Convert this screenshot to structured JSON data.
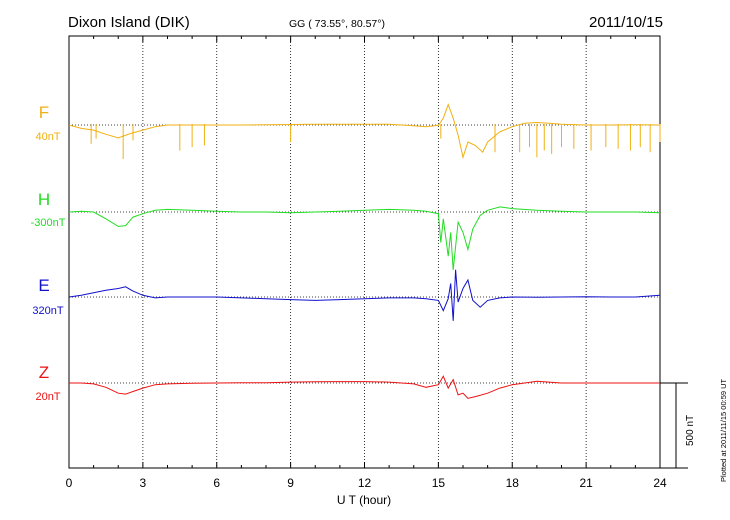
{
  "header": {
    "station": "Dixon Island (DIK)",
    "coords": "GG ( 73.55°,  80.57°)",
    "date": "2011/10/15"
  },
  "footer": {
    "plotted": "Plotted at 2011/11/15 00:59 UT"
  },
  "colors": {
    "F": "#f0b010",
    "H": "#22dd22",
    "E": "#1010cc",
    "Z": "#ee1111",
    "axis": "#000000"
  },
  "chart_data": {
    "type": "line",
    "title": "",
    "xlabel": "U T (hour)",
    "ylabel": "",
    "xlim": [
      0,
      24
    ],
    "xticks": [
      "0",
      "3",
      "6",
      "9",
      "12",
      "15",
      "18",
      "21",
      "24"
    ],
    "grid": "dotted vertical at every 3 h, dotted baseline per component",
    "scale_bar": {
      "value": 500,
      "label": "500 nT"
    },
    "series": [
      {
        "name": "F",
        "baseline_label": "40nT",
        "baseline": 40,
        "points": [
          [
            0,
            40
          ],
          [
            0.5,
            20
          ],
          [
            1,
            10
          ],
          [
            1.5,
            -15
          ],
          [
            2,
            -35
          ],
          [
            2.5,
            -10
          ],
          [
            3,
            10
          ],
          [
            3.5,
            30
          ],
          [
            4,
            40
          ],
          [
            5,
            40
          ],
          [
            6,
            40
          ],
          [
            7,
            40
          ],
          [
            8,
            42
          ],
          [
            9,
            43
          ],
          [
            10,
            44
          ],
          [
            11,
            45
          ],
          [
            12,
            45
          ],
          [
            13,
            45
          ],
          [
            13.5,
            40
          ],
          [
            14,
            35
          ],
          [
            14.5,
            30
          ],
          [
            15,
            38
          ],
          [
            15.2,
            80
          ],
          [
            15.4,
            160
          ],
          [
            15.6,
            80
          ],
          [
            15.8,
            -20
          ],
          [
            16,
            -150
          ],
          [
            16.2,
            -60
          ],
          [
            16.5,
            -80
          ],
          [
            16.8,
            -120
          ],
          [
            17,
            -60
          ],
          [
            17.5,
            0
          ],
          [
            18,
            30
          ],
          [
            18.5,
            50
          ],
          [
            19,
            55
          ],
          [
            19.5,
            50
          ],
          [
            20,
            45
          ],
          [
            21,
            40
          ],
          [
            22,
            40
          ],
          [
            23,
            42
          ],
          [
            24,
            40
          ]
        ],
        "spikes": [
          [
            0.9,
            -70
          ],
          [
            1.1,
            -40
          ],
          [
            2.2,
            -160
          ],
          [
            2.6,
            -50
          ],
          [
            4.5,
            -110
          ],
          [
            5,
            -90
          ],
          [
            5.5,
            -80
          ],
          [
            9,
            -60
          ],
          [
            15.1,
            -40
          ],
          [
            17.3,
            -120
          ],
          [
            18.3,
            -120
          ],
          [
            18.7,
            -90
          ],
          [
            19,
            -150
          ],
          [
            19.3,
            -110
          ],
          [
            19.6,
            -130
          ],
          [
            20,
            -90
          ],
          [
            20.5,
            -100
          ],
          [
            21.2,
            -110
          ],
          [
            21.8,
            -90
          ],
          [
            22.3,
            -100
          ],
          [
            22.8,
            -110
          ],
          [
            23.2,
            -90
          ],
          [
            23.6,
            -120
          ],
          [
            24,
            -60
          ]
        ]
      },
      {
        "name": "H",
        "baseline_label": "-300nT",
        "baseline": -300,
        "points": [
          [
            0,
            -300
          ],
          [
            0.5,
            -295
          ],
          [
            1,
            -300
          ],
          [
            1.5,
            -340
          ],
          [
            2,
            -385
          ],
          [
            2.3,
            -380
          ],
          [
            2.6,
            -330
          ],
          [
            3,
            -310
          ],
          [
            3.5,
            -290
          ],
          [
            4,
            -285
          ],
          [
            5,
            -290
          ],
          [
            6,
            -295
          ],
          [
            7,
            -300
          ],
          [
            8,
            -300
          ],
          [
            9,
            -305
          ],
          [
            10,
            -300
          ],
          [
            11,
            -295
          ],
          [
            12,
            -290
          ],
          [
            13,
            -285
          ],
          [
            14,
            -290
          ],
          [
            14.5,
            -295
          ],
          [
            15,
            -310
          ],
          [
            15.1,
            -480
          ],
          [
            15.2,
            -340
          ],
          [
            15.4,
            -560
          ],
          [
            15.5,
            -420
          ],
          [
            15.6,
            -640
          ],
          [
            15.8,
            -360
          ],
          [
            16,
            -420
          ],
          [
            16.2,
            -520
          ],
          [
            16.4,
            -400
          ],
          [
            16.7,
            -320
          ],
          [
            17,
            -290
          ],
          [
            17.5,
            -270
          ],
          [
            18,
            -280
          ],
          [
            19,
            -290
          ],
          [
            20,
            -295
          ],
          [
            21,
            -300
          ],
          [
            22,
            -300
          ],
          [
            23,
            -300
          ],
          [
            24,
            -305
          ]
        ]
      },
      {
        "name": "E",
        "baseline_label": "320nT",
        "baseline": 320,
        "points": [
          [
            0,
            320
          ],
          [
            0.5,
            330
          ],
          [
            1,
            345
          ],
          [
            1.5,
            360
          ],
          [
            2,
            370
          ],
          [
            2.3,
            380
          ],
          [
            2.6,
            355
          ],
          [
            3,
            330
          ],
          [
            3.5,
            315
          ],
          [
            4,
            320
          ],
          [
            5,
            320
          ],
          [
            6,
            320
          ],
          [
            7,
            315
          ],
          [
            8,
            310
          ],
          [
            9,
            305
          ],
          [
            10,
            300
          ],
          [
            11,
            305
          ],
          [
            12,
            310
          ],
          [
            13,
            315
          ],
          [
            14,
            315
          ],
          [
            14.5,
            310
          ],
          [
            15,
            300
          ],
          [
            15.2,
            240
          ],
          [
            15.4,
            310
          ],
          [
            15.5,
            400
          ],
          [
            15.6,
            180
          ],
          [
            15.7,
            480
          ],
          [
            15.8,
            290
          ],
          [
            16,
            370
          ],
          [
            16.2,
            420
          ],
          [
            16.4,
            300
          ],
          [
            16.7,
            260
          ],
          [
            17,
            300
          ],
          [
            17.5,
            315
          ],
          [
            18,
            320
          ],
          [
            19,
            318
          ],
          [
            20,
            320
          ],
          [
            21,
            322
          ],
          [
            22,
            320
          ],
          [
            23,
            320
          ],
          [
            24,
            330
          ]
        ]
      },
      {
        "name": "Z",
        "baseline_label": "20nT",
        "baseline": 20,
        "points": [
          [
            0,
            20
          ],
          [
            0.5,
            20
          ],
          [
            1,
            15
          ],
          [
            1.5,
            -5
          ],
          [
            2,
            -40
          ],
          [
            2.3,
            -45
          ],
          [
            2.6,
            -30
          ],
          [
            3,
            -10
          ],
          [
            3.5,
            10
          ],
          [
            4,
            15
          ],
          [
            5,
            18
          ],
          [
            6,
            20
          ],
          [
            7,
            22
          ],
          [
            8,
            22
          ],
          [
            9,
            25
          ],
          [
            10,
            27
          ],
          [
            11,
            28
          ],
          [
            12,
            28
          ],
          [
            13,
            25
          ],
          [
            14,
            15
          ],
          [
            14.5,
            -5
          ],
          [
            15,
            10
          ],
          [
            15.2,
            60
          ],
          [
            15.4,
            -10
          ],
          [
            15.6,
            40
          ],
          [
            15.8,
            -50
          ],
          [
            16,
            -40
          ],
          [
            16.2,
            -70
          ],
          [
            16.5,
            -60
          ],
          [
            17,
            -40
          ],
          [
            17.5,
            -10
          ],
          [
            18,
            10
          ],
          [
            18.5,
            20
          ],
          [
            19,
            30
          ],
          [
            19.5,
            25
          ],
          [
            20,
            20
          ],
          [
            21,
            20
          ],
          [
            22,
            20
          ],
          [
            23,
            20
          ],
          [
            24,
            20
          ]
        ]
      }
    ]
  }
}
